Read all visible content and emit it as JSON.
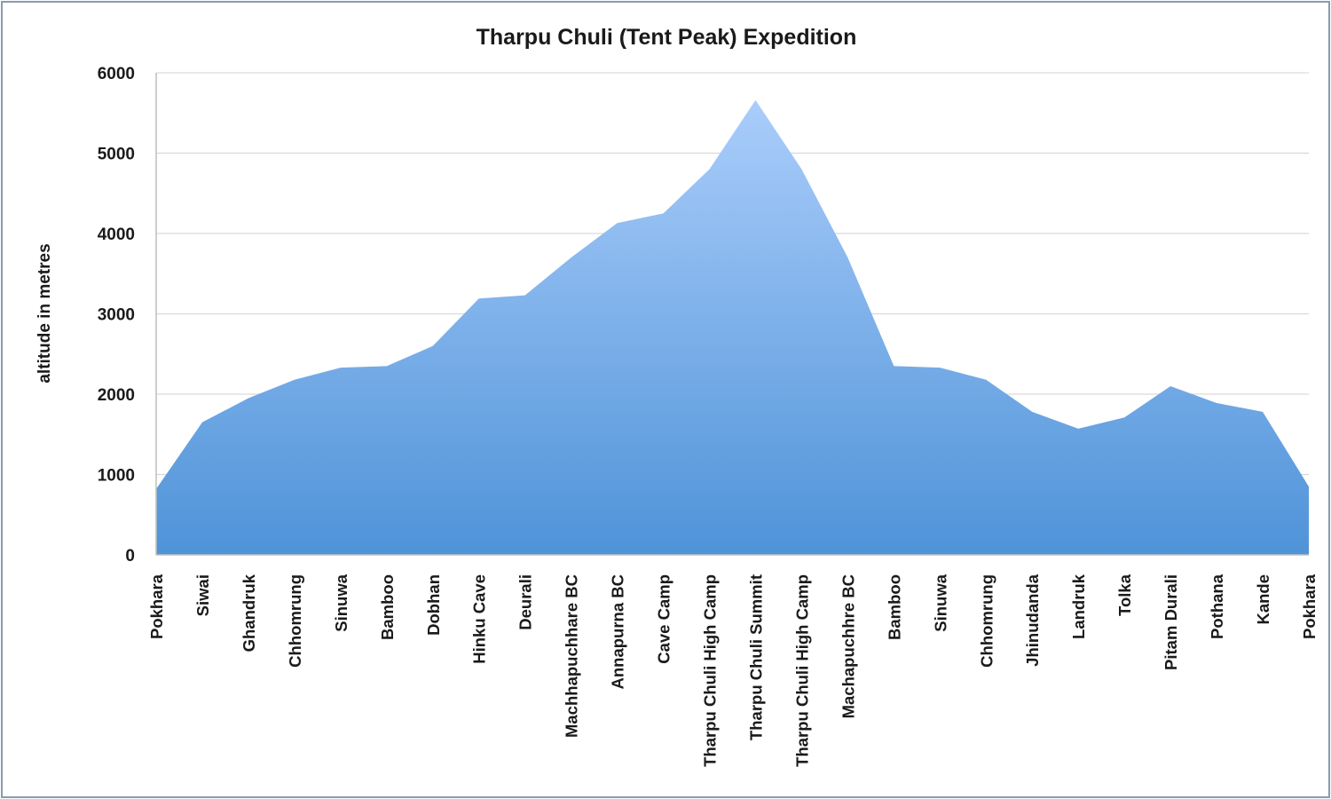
{
  "chart_data": {
    "type": "area",
    "title": "Tharpu Chuli (Tent Peak) Expedition",
    "xlabel": "",
    "ylabel": "altitude in metres",
    "ylim": [
      0,
      6000
    ],
    "yticks": [
      0,
      1000,
      2000,
      3000,
      4000,
      5000,
      6000
    ],
    "grid": true,
    "legend": "none",
    "fill_top_color": "#aacdfb",
    "fill_bottom_color": "#4f93d8",
    "categories": [
      "Pokhara",
      "Siwai",
      "Ghandruk",
      "Chhomrung",
      "Sinuwa",
      "Bamboo",
      "Dobhan",
      "Hinku Cave",
      "Deurali",
      "Machhapuchhare BC",
      "Annapurna BC",
      "Cave Camp",
      "Tharpu Chuli High Camp",
      "Tharpu Chuli Summit",
      "Tharpu Chuli High Camp",
      "Machapuchhre BC",
      "Bamboo",
      "Sinuwa",
      "Chhomrung",
      "Jhinudanda",
      "Landruk",
      "Tolka",
      "Pitam Durali",
      "Pothana",
      "Kande",
      "Pokhara"
    ],
    "series": [
      {
        "values": [
          820,
          1650,
          1950,
          2180,
          2330,
          2350,
          2600,
          3190,
          3230,
          3700,
          4130,
          4250,
          4800,
          5660,
          4800,
          3700,
          2350,
          2330,
          2180,
          1780,
          1570,
          1710,
          2100,
          1890,
          1780,
          850
        ]
      }
    ]
  }
}
